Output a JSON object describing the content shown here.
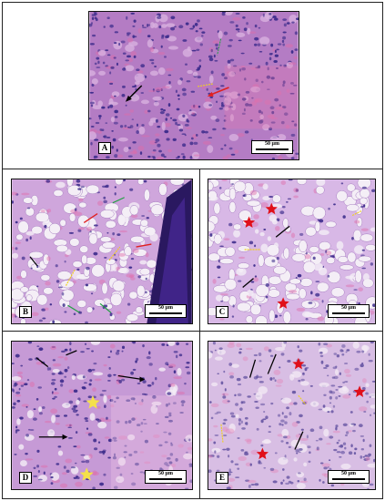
{
  "figure": {
    "panels": [
      {
        "letter": "A",
        "scale_label": "50 μm"
      },
      {
        "letter": "B",
        "scale_label": "50 μm"
      },
      {
        "letter": "C",
        "scale_label": "50 μm"
      },
      {
        "letter": "D",
        "scale_label": "50 μm"
      },
      {
        "letter": "E",
        "scale_label": "50 μm"
      }
    ]
  },
  "colors": {
    "tissue_base": "#c79ad2",
    "nuclei": "#3a2a8a",
    "pink_stroma": "#e06aa8",
    "vacuole": "#f4eef6",
    "arrow_black": "#000000",
    "arrow_red": "#e02020",
    "arrow_yellow": "#f0d020",
    "arrow_green": "#20a040",
    "star_red": "#e0101a",
    "star_yellow": "#f4e04a"
  },
  "icons": [
    "black-arrow-icon",
    "red-arrow-icon",
    "yellow-arrow-icon",
    "green-arrow-icon",
    "red-star-icon",
    "yellow-star-icon"
  ]
}
